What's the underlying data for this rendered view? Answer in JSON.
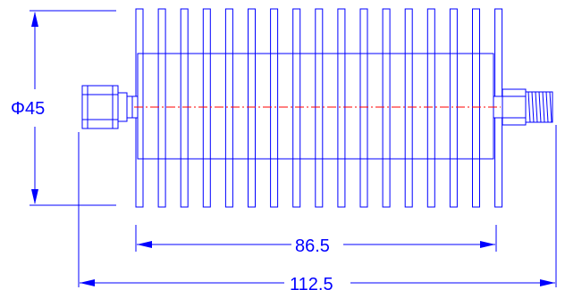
{
  "drawing": {
    "diameter_label": "Φ45",
    "body_length_label": "86.5",
    "overall_length_label": "112.5"
  },
  "colors": {
    "outline": "#0000ff",
    "centerline": "#ff0000",
    "background": "#ffffff"
  }
}
